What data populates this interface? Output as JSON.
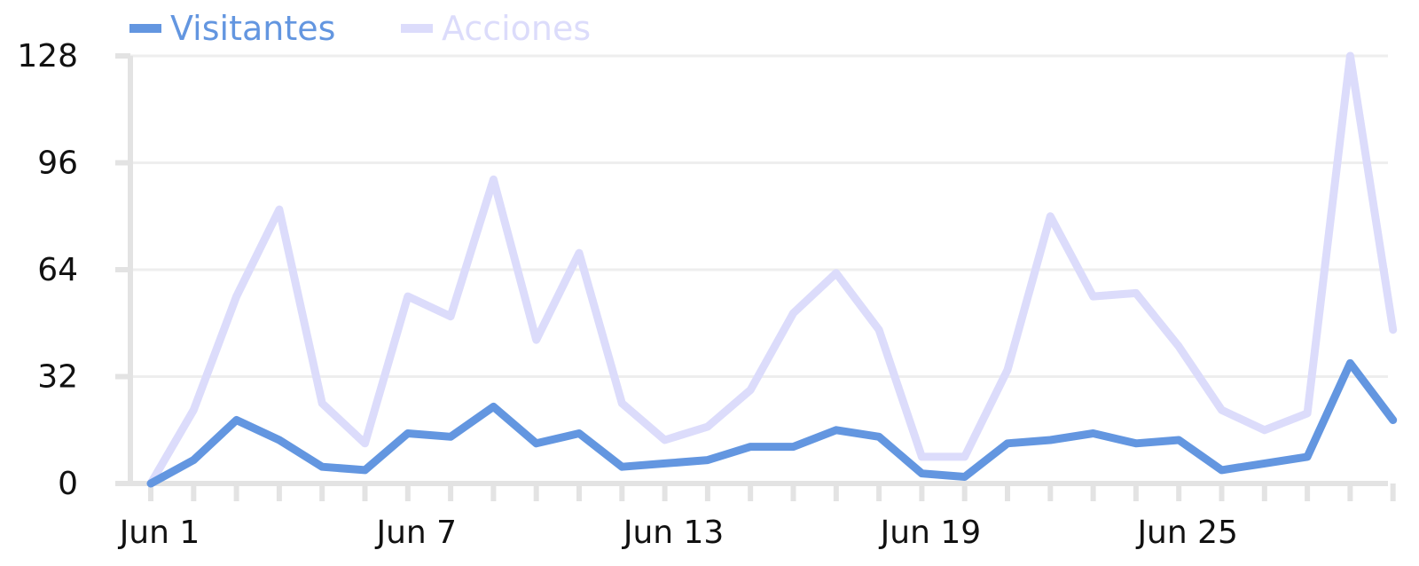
{
  "chart_data": {
    "type": "line",
    "title": "",
    "xlabel": "",
    "ylabel": "",
    "x": [
      "Jun 1",
      "Jun 2",
      "Jun 3",
      "Jun 4",
      "Jun 5",
      "Jun 6",
      "Jun 7",
      "Jun 8",
      "Jun 9",
      "Jun 10",
      "Jun 11",
      "Jun 12",
      "Jun 13",
      "Jun 14",
      "Jun 15",
      "Jun 16",
      "Jun 17",
      "Jun 18",
      "Jun 19",
      "Jun 20",
      "Jun 21",
      "Jun 22",
      "Jun 23",
      "Jun 24",
      "Jun 25",
      "Jun 26",
      "Jun 27",
      "Jun 28",
      "Jun 29",
      "Jun 30"
    ],
    "x_tick_labels": [
      "Jun 1",
      "Jun 7",
      "Jun 13",
      "Jun 19",
      "Jun 25"
    ],
    "y_ticks": [
      0,
      32,
      64,
      96,
      128
    ],
    "ylim": [
      0,
      128
    ],
    "grid": true,
    "legend_position": "top-left",
    "series": [
      {
        "name": "Visitantes",
        "color": "#6396e0",
        "values": [
          0,
          7,
          19,
          13,
          5,
          4,
          15,
          14,
          23,
          12,
          15,
          5,
          6,
          7,
          11,
          11,
          16,
          14,
          3,
          2,
          12,
          13,
          15,
          12,
          13,
          4,
          6,
          8,
          36,
          19
        ]
      },
      {
        "name": "Acciones",
        "color": "#dcdcfb",
        "values": [
          0,
          22,
          56,
          82,
          24,
          12,
          56,
          50,
          91,
          43,
          69,
          24,
          13,
          17,
          28,
          51,
          63,
          46,
          8,
          8,
          34,
          80,
          56,
          57,
          41,
          22,
          16,
          21,
          128,
          46
        ]
      }
    ]
  }
}
